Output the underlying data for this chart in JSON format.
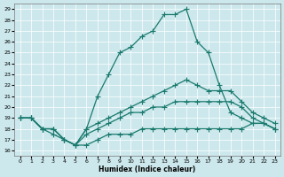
{
  "xlabel": "Humidex (Indice chaleur)",
  "bg_color": "#cce8ec",
  "line_color": "#1a7a6e",
  "xlim": [
    -0.5,
    23.5
  ],
  "ylim": [
    15.5,
    29.5
  ],
  "yticks": [
    16,
    17,
    18,
    19,
    20,
    21,
    22,
    23,
    24,
    25,
    26,
    27,
    28,
    29
  ],
  "xticks": [
    0,
    1,
    2,
    3,
    4,
    5,
    6,
    7,
    8,
    9,
    10,
    11,
    12,
    13,
    14,
    15,
    16,
    17,
    18,
    19,
    20,
    21,
    22,
    23
  ],
  "line_peak_x": [
    0,
    1,
    2,
    3,
    4,
    5,
    6,
    7,
    8,
    9,
    10,
    11,
    12,
    13,
    14,
    15,
    16,
    17,
    18,
    19,
    20,
    21,
    22,
    23
  ],
  "line_peak_y": [
    19,
    19,
    18,
    18,
    17,
    16.5,
    18,
    21,
    23,
    25,
    25.5,
    26.5,
    27,
    28.5,
    28.5,
    29,
    26,
    25,
    22,
    19.5,
    19,
    18.5,
    18.5,
    18
  ],
  "line_mid_x": [
    0,
    1,
    2,
    3,
    4,
    5,
    6,
    7,
    8,
    9,
    10,
    11,
    12,
    13,
    14,
    15,
    16,
    17,
    18,
    19,
    20,
    21,
    22,
    23
  ],
  "line_mid_y": [
    19,
    19,
    18,
    18,
    17,
    16.5,
    18,
    18.5,
    19,
    19.5,
    20,
    20.5,
    21,
    21.5,
    22,
    22.5,
    22,
    21.5,
    21.5,
    21.5,
    20.5,
    19.5,
    19,
    18.5
  ],
  "line_low_x": [
    0,
    1,
    2,
    3,
    4,
    5,
    6,
    7,
    8,
    9,
    10,
    11,
    12,
    13,
    14,
    15,
    16,
    17,
    18,
    19,
    20,
    21,
    22,
    23
  ],
  "line_low_y": [
    19,
    19,
    18,
    18,
    17,
    16.5,
    17.5,
    18,
    18.5,
    19,
    19.5,
    19.5,
    20,
    20,
    20.5,
    20.5,
    20.5,
    20.5,
    20.5,
    20.5,
    20,
    19,
    18.5,
    18
  ],
  "line_flat_x": [
    0,
    1,
    2,
    3,
    4,
    5,
    6,
    7,
    8,
    9,
    10,
    11,
    12,
    13,
    14,
    15,
    16,
    17,
    18,
    19,
    20,
    21,
    22,
    23
  ],
  "line_flat_y": [
    19,
    19,
    18,
    17.5,
    17,
    16.5,
    16.5,
    17,
    17.5,
    17.5,
    17.5,
    18,
    18,
    18,
    18,
    18,
    18,
    18,
    18,
    18,
    18,
    18.5,
    18.5,
    18
  ]
}
